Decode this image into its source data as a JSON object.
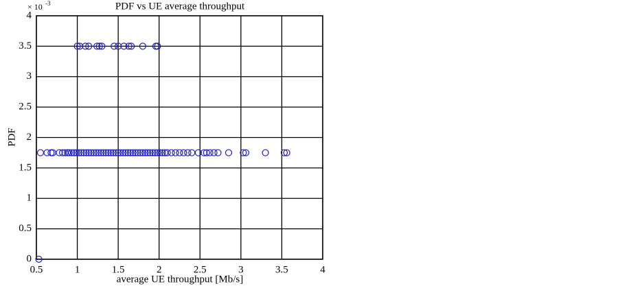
{
  "chart_data": {
    "type": "scatter",
    "title": "PDF vs UE average throughput",
    "xlabel": "average UE throughput [Mb/s]",
    "ylabel": "PDF",
    "y_multiplier": "× 10",
    "y_multiplier_exponent": "-3",
    "color": "#1f1fb8",
    "grid": true,
    "xlim": [
      0.5,
      4
    ],
    "xticks": [
      0.5,
      1,
      1.5,
      2,
      2.5,
      3,
      3.5,
      4
    ],
    "ylim": [
      0,
      4
    ],
    "yticks": [
      0,
      0.5,
      1,
      1.5,
      2,
      2.5,
      3,
      3.5,
      4
    ],
    "x": [
      0.53,
      1.0,
      1.03,
      1.1,
      1.14,
      1.24,
      1.27,
      1.3,
      1.45,
      1.5,
      1.57,
      1.63,
      1.66,
      1.8,
      1.96,
      1.98,
      0.55,
      0.63,
      0.68,
      0.7,
      0.78,
      0.82,
      0.85,
      0.88,
      0.9,
      0.93,
      0.96,
      0.99,
      1.02,
      1.05,
      1.08,
      1.11,
      1.14,
      1.17,
      1.2,
      1.23,
      1.26,
      1.29,
      1.32,
      1.35,
      1.38,
      1.41,
      1.44,
      1.47,
      1.5,
      1.53,
      1.56,
      1.59,
      1.62,
      1.65,
      1.68,
      1.71,
      1.74,
      1.77,
      1.8,
      1.83,
      1.86,
      1.89,
      1.92,
      1.95,
      1.98,
      2.01,
      2.04,
      2.07,
      2.1,
      2.15,
      2.2,
      2.25,
      2.3,
      2.35,
      2.4,
      2.48,
      2.55,
      2.58,
      2.62,
      2.67,
      2.72,
      2.85,
      3.03,
      3.06,
      3.3,
      3.53,
      3.56
    ],
    "values": [
      0,
      3.5,
      3.5,
      3.5,
      3.5,
      3.5,
      3.5,
      3.5,
      3.5,
      3.5,
      3.5,
      3.5,
      3.5,
      3.5,
      3.5,
      3.5,
      1.75,
      1.75,
      1.75,
      1.75,
      1.75,
      1.75,
      1.75,
      1.75,
      1.75,
      1.75,
      1.75,
      1.75,
      1.75,
      1.75,
      1.75,
      1.75,
      1.75,
      1.75,
      1.75,
      1.75,
      1.75,
      1.75,
      1.75,
      1.75,
      1.75,
      1.75,
      1.75,
      1.75,
      1.75,
      1.75,
      1.75,
      1.75,
      1.75,
      1.75,
      1.75,
      1.75,
      1.75,
      1.75,
      1.75,
      1.75,
      1.75,
      1.75,
      1.75,
      1.75,
      1.75,
      1.75,
      1.75,
      1.75,
      1.75,
      1.75,
      1.75,
      1.75,
      1.75,
      1.75,
      1.75,
      1.75,
      1.75,
      1.75,
      1.75,
      1.75,
      1.75,
      1.75,
      1.75,
      1.75,
      1.75,
      1.75,
      1.75
    ]
  }
}
